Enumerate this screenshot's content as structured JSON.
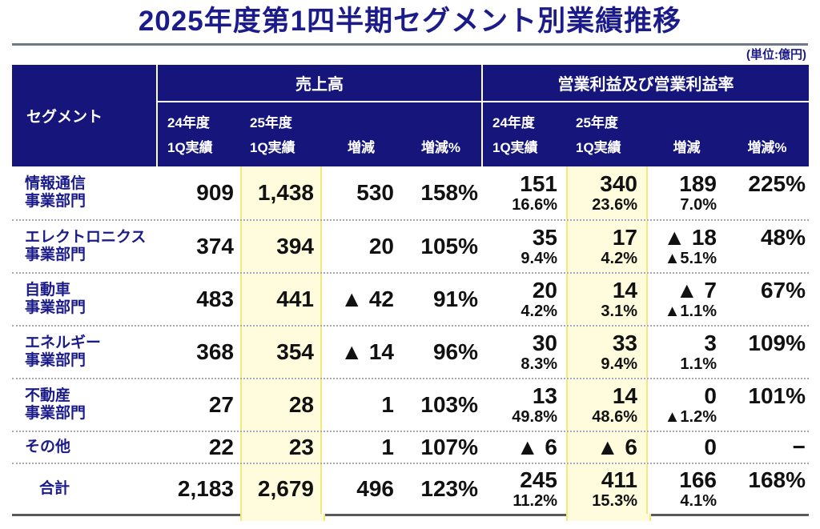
{
  "page": {
    "title": "2025年度第1四半期セグメント別業績推移",
    "unit_note": "(単位:億円)"
  },
  "colors": {
    "navy_bg": "#15157C",
    "navy_text": "#1B1B8A",
    "text": "#111111",
    "rule_gray": "#6E7A87",
    "bottom_rule": "#58595B",
    "row_dotted": "#A9A9A9",
    "highlight_bg": "#FEFCDC",
    "highlight_border": "#F2EA7E"
  },
  "table": {
    "segment_header": "セグメント",
    "groups": {
      "sales": "売上高",
      "profit": "営業利益及び営業利益率"
    },
    "subheaders": {
      "y24_line1": "24年度",
      "y24_line2": "1Q実績",
      "y25_line1": "25年度",
      "y25_line2": "1Q実績",
      "diff": "増減",
      "pct": "増減%"
    },
    "rows": [
      {
        "label": [
          "情報通信",
          "事業部門"
        ],
        "sales": {
          "y24": "909",
          "y25": "1,438",
          "diff": "530",
          "pct": "158%"
        },
        "profit": {
          "y24": {
            "v": "151",
            "r": "16.6%"
          },
          "y25": {
            "v": "340",
            "r": "23.6%"
          },
          "diff": {
            "v": "189",
            "r": "7.0%"
          },
          "pct": {
            "v": "225%",
            "r": ""
          }
        }
      },
      {
        "label": [
          "エレクトロニクス",
          "事業部門"
        ],
        "sales": {
          "y24": "374",
          "y25": "394",
          "diff": "20",
          "pct": "105%"
        },
        "profit": {
          "y24": {
            "v": "35",
            "r": "9.4%"
          },
          "y25": {
            "v": "17",
            "r": "4.2%"
          },
          "diff": {
            "v": "▲ 18",
            "r": "▲5.1%"
          },
          "pct": {
            "v": "48%",
            "r": ""
          }
        }
      },
      {
        "label": [
          "自動車",
          "事業部門"
        ],
        "sales": {
          "y24": "483",
          "y25": "441",
          "diff": "▲ 42",
          "pct": "91%"
        },
        "profit": {
          "y24": {
            "v": "20",
            "r": "4.2%"
          },
          "y25": {
            "v": "14",
            "r": "3.1%"
          },
          "diff": {
            "v": "▲ 7",
            "r": "▲1.1%"
          },
          "pct": {
            "v": "67%",
            "r": ""
          }
        }
      },
      {
        "label": [
          "エネルギー",
          "事業部門"
        ],
        "sales": {
          "y24": "368",
          "y25": "354",
          "diff": "▲ 14",
          "pct": "96%"
        },
        "profit": {
          "y24": {
            "v": "30",
            "r": "8.3%"
          },
          "y25": {
            "v": "33",
            "r": "9.4%"
          },
          "diff": {
            "v": "3",
            "r": "1.1%"
          },
          "pct": {
            "v": "109%",
            "r": ""
          }
        }
      },
      {
        "label": [
          "不動産",
          "事業部門"
        ],
        "sales": {
          "y24": "27",
          "y25": "28",
          "diff": "1",
          "pct": "103%"
        },
        "profit": {
          "y24": {
            "v": "13",
            "r": "49.8%"
          },
          "y25": {
            "v": "14",
            "r": "48.6%"
          },
          "diff": {
            "v": "0",
            "r": "▲1.2%"
          },
          "pct": {
            "v": "101%",
            "r": ""
          }
        }
      },
      {
        "label": [
          "その他"
        ],
        "single": true,
        "sales": {
          "y24": "22",
          "y25": "23",
          "diff": "1",
          "pct": "107%"
        },
        "profit": {
          "y24": {
            "v": "▲ 6",
            "r": ""
          },
          "y25": {
            "v": "▲ 6",
            "r": ""
          },
          "diff": {
            "v": "0",
            "r": ""
          },
          "pct": {
            "v": "−",
            "r": ""
          }
        }
      },
      {
        "label": [
          "合計"
        ],
        "total": true,
        "sales": {
          "y24": "2,183",
          "y25": "2,679",
          "diff": "496",
          "pct": "123%"
        },
        "profit": {
          "y24": {
            "v": "245",
            "r": "11.2%"
          },
          "y25": {
            "v": "411",
            "r": "15.3%"
          },
          "diff": {
            "v": "166",
            "r": "4.1%"
          },
          "pct": {
            "v": "168%",
            "r": ""
          }
        }
      }
    ]
  }
}
